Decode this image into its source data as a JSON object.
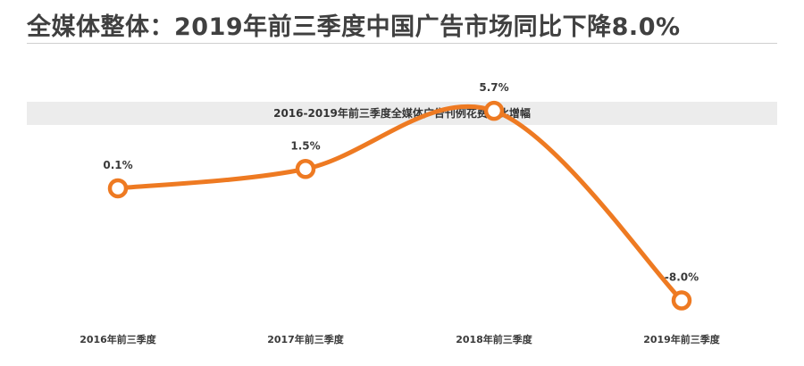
{
  "page": {
    "title": "全媒体整体：2019年前三季度中国广告市场同比下降8.0%"
  },
  "colors": {
    "series": "#ee7a22",
    "marker_fill": "#ffffff",
    "banner": "#ececec"
  },
  "chart_data": {
    "type": "line",
    "title": "2016-2019年前三季度全媒体广告刊例花费同比增幅",
    "categories": [
      "2016年前三季度",
      "2017年前三季度",
      "2018年前三季度",
      "2019年前三季度"
    ],
    "series": [
      {
        "values": [
          0.1,
          1.5,
          5.7,
          -8.0
        ],
        "labels": [
          "0.1%",
          "1.5%",
          "5.7%",
          "-8.0%"
        ]
      }
    ],
    "unit": "%",
    "xlabel": "",
    "ylabel": "",
    "grid": false,
    "legend": "none"
  }
}
